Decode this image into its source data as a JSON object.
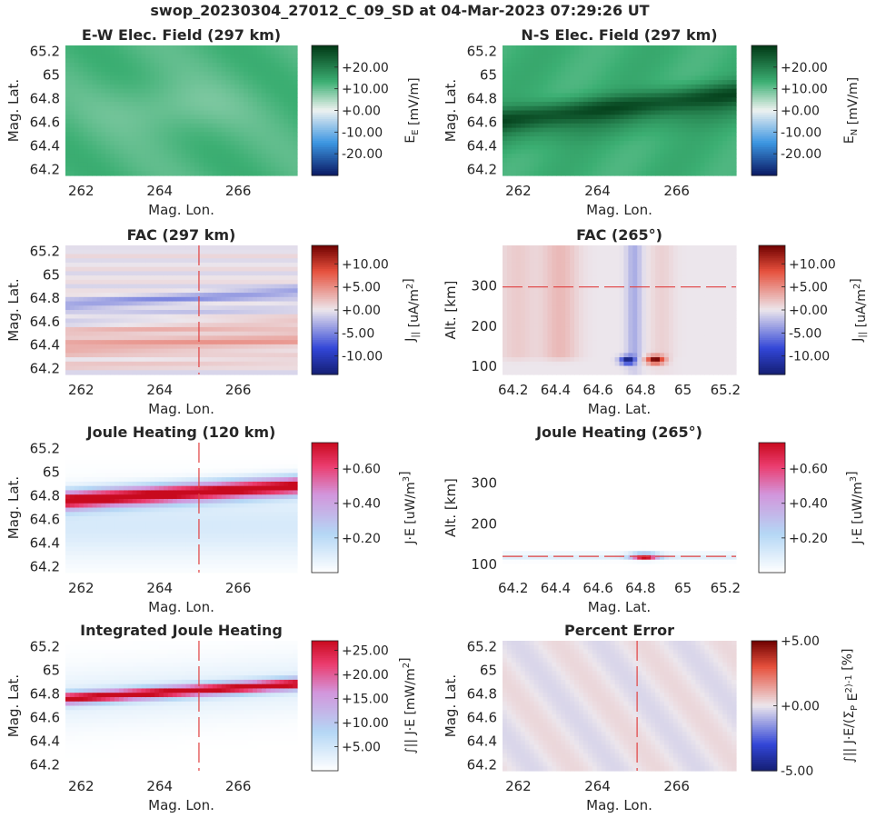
{
  "figure_title": "swop_20230304_27012_C_09_SD at 04-Mar-2023 07:29:26 UT",
  "chart_data": [
    {
      "type": "heatmap",
      "title": "E-W Elec. Field (297 km)",
      "xlabel": "Mag. Lon.",
      "ylabel": "Mag. Lat.",
      "xlim": [
        261.6,
        267.5
      ],
      "ylim": [
        64.15,
        65.25
      ],
      "xticks": [
        262,
        264,
        266
      ],
      "xtick_labels": [
        "262",
        "264",
        "266"
      ],
      "yticks": [
        64.2,
        64.4,
        64.6,
        64.8,
        65,
        65.2
      ],
      "ytick_labels": [
        "64.2",
        "64.4",
        "64.6",
        "64.8",
        "65",
        "65.2"
      ],
      "colormap": "green-diverging",
      "colorbar": {
        "label": "E_E [mV/m]",
        "lim": [
          -30,
          30
        ],
        "ticks": [
          20,
          10,
          0,
          -10,
          -20
        ],
        "tick_labels": [
          "+20.00",
          "+10.00",
          "+0.00",
          "-10.00",
          "-20.00"
        ]
      },
      "field_summary": "nearly uniform about +12 mV/m, lighter (~+9) near 64.75 lat, 263.5-265 lon"
    },
    {
      "type": "heatmap",
      "title": "N-S Elec. Field (297 km)",
      "xlabel": "Mag. Lon.",
      "ylabel": "Mag. Lat.",
      "xlim": [
        261.6,
        267.5
      ],
      "ylim": [
        64.15,
        65.25
      ],
      "xticks": [
        262,
        264,
        266
      ],
      "xtick_labels": [
        "262",
        "264",
        "266"
      ],
      "yticks": [
        64.2,
        64.4,
        64.6,
        64.8,
        65,
        65.2
      ],
      "ytick_labels": [
        "64.2",
        "64.4",
        "64.6",
        "64.8",
        "65",
        "65.2"
      ],
      "colormap": "green-diverging",
      "colorbar": {
        "label": "E_N [mV/m]",
        "lim": [
          -30,
          30
        ],
        "ticks": [
          20,
          10,
          0,
          -10,
          -20
        ],
        "tick_labels": [
          "+20.00",
          "+10.00",
          "+0.00",
          "-10.00",
          "-20.00"
        ]
      },
      "field_summary": "background ~+14 mV/m; dark band ~+25 mV/m rising from 64.65 lat at 262 lon to 64.85 lat at 267.5 lon"
    },
    {
      "type": "heatmap",
      "title": "FAC (297 km)",
      "xlabel": "Mag. Lon.",
      "ylabel": "Mag. Lat.",
      "xlim": [
        261.6,
        267.5
      ],
      "ylim": [
        64.15,
        65.25
      ],
      "xticks": [
        262,
        264,
        266
      ],
      "xtick_labels": [
        "262",
        "264",
        "266"
      ],
      "yticks": [
        64.2,
        64.4,
        64.6,
        64.8,
        65,
        65.2
      ],
      "ytick_labels": [
        "64.2",
        "64.4",
        "64.6",
        "64.8",
        "65",
        "65.2"
      ],
      "colormap": "red-blue-diverging",
      "marker_line": {
        "orientation": "vertical",
        "value": 265
      },
      "colorbar": {
        "label": "J_|| [uA/m^2]",
        "lim": [
          -14,
          14
        ],
        "ticks": [
          10,
          5,
          0,
          -5,
          -10
        ],
        "tick_labels": [
          "+10.00",
          "+5.00",
          "+0.00",
          "-5.00",
          "-10.00"
        ]
      },
      "field_summary": "upward (blue ~-4) sheet near 64.75-64.85 lat; downward (red ~+4) bands near 64.3-64.5 lat"
    },
    {
      "type": "heatmap",
      "title": "FAC (265°)",
      "xlabel": "Mag. Lat.",
      "ylabel": "Alt. [km]",
      "xlim": [
        64.15,
        65.25
      ],
      "ylim": [
        80,
        400
      ],
      "xticks": [
        64.2,
        64.4,
        64.6,
        64.8,
        65,
        65.2
      ],
      "xtick_labels": [
        "64.2",
        "64.4",
        "64.6",
        "64.8",
        "65",
        "65.2"
      ],
      "yticks": [
        100,
        200,
        300
      ],
      "ytick_labels": [
        "100",
        "200",
        "300"
      ],
      "colormap": "red-blue-diverging",
      "marker_line": {
        "orientation": "horizontal",
        "value": 297
      },
      "colorbar": {
        "label": "J_|| [uA/m^2]",
        "lim": [
          -14,
          14
        ],
        "ticks": [
          10,
          5,
          0,
          -5,
          -10
        ],
        "tick_labels": [
          "+10.00",
          "+5.00",
          "+0.00",
          "-5.00",
          "-10.00"
        ]
      },
      "field_summary": "strong blue (~-14) at 64.74 lat / 115 km, strong red (~+14) at 64.87 lat / 115 km, weaker columns above"
    },
    {
      "type": "heatmap",
      "title": "Joule Heating (120 km)",
      "xlabel": "Mag. Lon.",
      "ylabel": "Mag. Lat.",
      "xlim": [
        261.6,
        267.5
      ],
      "ylim": [
        64.15,
        65.25
      ],
      "xticks": [
        262,
        264,
        266
      ],
      "xtick_labels": [
        "262",
        "264",
        "266"
      ],
      "yticks": [
        64.2,
        64.4,
        64.6,
        64.8,
        65,
        65.2
      ],
      "ytick_labels": [
        "64.2",
        "64.4",
        "64.6",
        "64.8",
        "65",
        "65.2"
      ],
      "colormap": "white-blue-red",
      "marker_line": {
        "orientation": "vertical",
        "value": 265
      },
      "colorbar": {
        "label": "J·E [uW/m^3]",
        "lim": [
          0,
          0.75
        ],
        "ticks": [
          0.6,
          0.4,
          0.2
        ],
        "tick_labels": [
          "+0.60",
          "+0.40",
          "+0.20"
        ]
      },
      "field_summary": "saturated band ~0.75 from 64.76 lat at 262 lon rising to 64.88 lat at 267.5 lon"
    },
    {
      "type": "heatmap",
      "title": "Joule Heating (265°)",
      "xlabel": "Mag. Lat.",
      "ylabel": "Alt. [km]",
      "xlim": [
        64.15,
        65.25
      ],
      "ylim": [
        80,
        400
      ],
      "xticks": [
        64.2,
        64.4,
        64.6,
        64.8,
        65,
        65.2
      ],
      "xtick_labels": [
        "64.2",
        "64.4",
        "64.6",
        "64.8",
        "65",
        "65.2"
      ],
      "yticks": [
        100,
        200,
        300
      ],
      "ytick_labels": [
        "100",
        "200",
        "300"
      ],
      "colormap": "white-blue-red",
      "marker_line": {
        "orientation": "horizontal",
        "value": 120
      },
      "colorbar": {
        "label": "J·E [uW/m^3]",
        "lim": [
          0,
          0.75
        ],
        "ticks": [
          0.6,
          0.4,
          0.2
        ],
        "tick_labels": [
          "+0.60",
          "+0.40",
          "+0.20"
        ]
      },
      "field_summary": "single compact maximum ~0.75 at 64.82 lat, 120 km"
    },
    {
      "type": "heatmap",
      "title": "Integrated Joule Heating",
      "xlabel": "Mag. Lon.",
      "ylabel": "Mag. Lat.",
      "xlim": [
        261.6,
        267.5
      ],
      "ylim": [
        64.15,
        65.25
      ],
      "xticks": [
        262,
        264,
        266
      ],
      "xtick_labels": [
        "262",
        "264",
        "266"
      ],
      "yticks": [
        64.2,
        64.4,
        64.6,
        64.8,
        65,
        65.2
      ],
      "ytick_labels": [
        "64.2",
        "64.4",
        "64.6",
        "64.8",
        "65",
        "65.2"
      ],
      "colormap": "white-blue-red",
      "marker_line": {
        "orientation": "vertical",
        "value": 265
      },
      "colorbar": {
        "label": "∫|| J·E [mW/m^2]",
        "lim": [
          0,
          27
        ],
        "ticks": [
          25,
          20,
          15,
          10,
          5
        ],
        "tick_labels": [
          "+25.00",
          "+20.00",
          "+15.00",
          "+10.00",
          "+5.00"
        ]
      },
      "field_summary": "ridge ~25 from 64.76 lat at 262 lon to 64.88 lat at 267.5 lon"
    },
    {
      "type": "heatmap",
      "title": "Percent Error",
      "xlabel": "Mag. Lon.",
      "ylabel": "Mag. Lat.",
      "xlim": [
        261.6,
        267.5
      ],
      "ylim": [
        64.15,
        65.25
      ],
      "xticks": [
        262,
        264,
        266
      ],
      "xtick_labels": [
        "262",
        "264",
        "266"
      ],
      "yticks": [
        64.2,
        64.4,
        64.6,
        64.8,
        65,
        65.2
      ],
      "ytick_labels": [
        "64.2",
        "64.4",
        "64.6",
        "64.8",
        "65",
        "65.2"
      ],
      "colormap": "red-blue-diverging",
      "marker_line": {
        "orientation": "vertical",
        "value": 265
      },
      "colorbar": {
        "label": "∫|| J·E/(Σ_P E^2)-1 [%]",
        "lim": [
          -5,
          5
        ],
        "ticks": [
          5,
          0,
          -5
        ],
        "tick_labels": [
          "+5.00",
          "+0.00",
          "-5.00"
        ]
      },
      "field_summary": "uniform ~0 %"
    }
  ]
}
